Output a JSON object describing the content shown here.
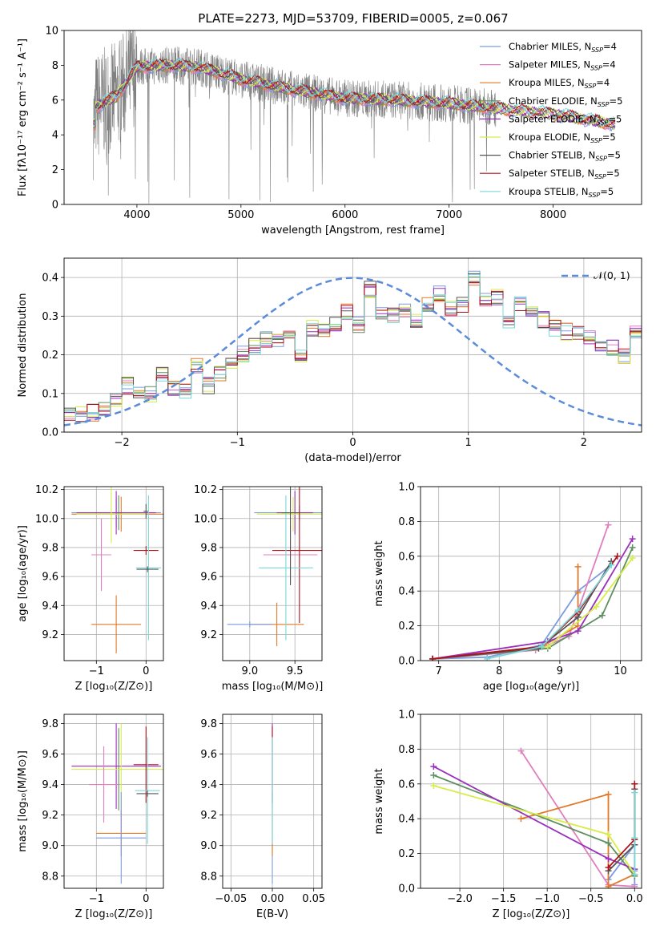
{
  "figure_title": "PLATE=2273, MJD=53709, FIBERID=0005, z=0.067",
  "colors": {
    "chabrier_miles": "#7a9be0",
    "salpeter_miles": "#e07fbf",
    "kroupa_miles": "#e07a2a",
    "chabrier_elodie": "#5f8f5f",
    "salpeter_elodie": "#9a2fbf",
    "kroupa_elodie": "#d8ec4a",
    "chabrier_stelib": "#555555",
    "salpeter_stelib": "#b0101a",
    "kroupa_stelib": "#7ad8d8",
    "data_spectrum": "#808080",
    "normal_curve": "#5b8bd9",
    "grid": "#b0b0b0"
  },
  "legend_entries": [
    {
      "base": "Chabrier MILES, N",
      "sub": "SSP",
      "suffix": "=4",
      "color_key": "chabrier_miles"
    },
    {
      "base": "Salpeter MILES, N",
      "sub": "SSP",
      "suffix": "=4",
      "color_key": "salpeter_miles"
    },
    {
      "base": "Kroupa MILES, N",
      "sub": "SSP",
      "suffix": "=4",
      "color_key": "kroupa_miles"
    },
    {
      "base": "Chabrier ELODIE, N",
      "sub": "SSP",
      "suffix": "=5",
      "color_key": "chabrier_elodie"
    },
    {
      "base": "Salpeter ELODIE, N",
      "sub": "SSP",
      "suffix": "=5",
      "color_key": "salpeter_elodie"
    },
    {
      "base": "Kroupa ELODIE, N",
      "sub": "SSP",
      "suffix": "=5",
      "color_key": "kroupa_elodie"
    },
    {
      "base": "Chabrier STELIB, N",
      "sub": "SSP",
      "suffix": "=5",
      "color_key": "chabrier_stelib"
    },
    {
      "base": "Salpeter STELIB, N",
      "sub": "SSP",
      "suffix": "=5",
      "color_key": "salpeter_stelib"
    },
    {
      "base": "Kroupa STELIB, N",
      "sub": "SSP",
      "suffix": "=5",
      "color_key": "kroupa_stelib"
    }
  ],
  "chart_data": [
    {
      "id": "spectrum",
      "type": "line",
      "xlabel": "wavelength [Angstrom, rest frame]",
      "ylabel": "Flux [fλ10⁻¹⁷ erg cm⁻² s⁻¹ A⁻¹]",
      "xlim": [
        3300,
        8850
      ],
      "ylim": [
        0,
        10
      ],
      "xticks": [
        4000,
        5000,
        6000,
        7000,
        8000
      ],
      "yticks": [
        0,
        2,
        4,
        6,
        8,
        10
      ],
      "grid": false,
      "legend_position": "top-right",
      "data_range": [
        3580,
        7450
      ],
      "model_range": [
        3580,
        8600
      ],
      "continuum_points": [
        [
          3600,
          5.6
        ],
        [
          3800,
          6.2
        ],
        [
          4000,
          7.9
        ],
        [
          4300,
          8.0
        ],
        [
          4600,
          7.9
        ],
        [
          5000,
          7.2
        ],
        [
          5500,
          6.6
        ],
        [
          6000,
          6.1
        ],
        [
          6500,
          6.0
        ],
        [
          7000,
          5.8
        ],
        [
          7500,
          5.5
        ],
        [
          8000,
          5.2
        ],
        [
          8600,
          4.6
        ]
      ]
    },
    {
      "id": "residual_hist",
      "type": "step",
      "xlabel": "(data-model)/error",
      "ylabel": "Normed distribution",
      "xlim": [
        -2.5,
        2.5
      ],
      "ylim": [
        0,
        0.45
      ],
      "xticks": [
        -2,
        -1,
        0,
        1,
        2
      ],
      "yticks": [
        0.0,
        0.1,
        0.2,
        0.3,
        0.4
      ],
      "grid": true,
      "legend_label": "𝒩(0, 1)",
      "legend_position": "top-right",
      "bin_width": 0.1,
      "bin_start": -2.5,
      "base_heights": [
        0.04,
        0.045,
        0.05,
        0.06,
        0.08,
        0.12,
        0.1,
        0.1,
        0.15,
        0.11,
        0.11,
        0.17,
        0.12,
        0.15,
        0.18,
        0.2,
        0.22,
        0.24,
        0.24,
        0.25,
        0.2,
        0.27,
        0.26,
        0.28,
        0.31,
        0.28,
        0.37,
        0.31,
        0.3,
        0.32,
        0.29,
        0.33,
        0.36,
        0.32,
        0.33,
        0.4,
        0.34,
        0.35,
        0.29,
        0.33,
        0.32,
        0.29,
        0.27,
        0.26,
        0.26,
        0.25,
        0.23,
        0.22,
        0.2,
        0.26,
        0.22,
        0.2,
        0.21,
        0.23,
        0.19,
        0.17,
        0.16,
        0.15,
        0.13,
        0.14,
        0.13,
        0.12,
        0.11,
        0.09,
        0.09,
        0.08,
        0.07,
        0.06,
        0.07,
        0.09,
        0.07,
        0.06,
        0.09,
        0.06,
        0.05,
        0.05
      ]
    },
    {
      "id": "age_vs_Z",
      "type": "scatter",
      "xlabel": "Z [log₁₀(Z/Z⊙)]",
      "ylabel": "age  [log₁₀(age/yr)]",
      "xlim": [
        -1.65,
        0.35
      ],
      "ylim": [
        9.02,
        10.22
      ],
      "xticks": [
        -1,
        0
      ],
      "yticks": [
        9.2,
        9.4,
        9.6,
        9.8,
        10.0,
        10.2
      ],
      "grid": true
    },
    {
      "id": "age_vs_mass",
      "type": "scatter",
      "xlabel": "mass [log₁₀(M/M⊙)]",
      "ylabel": "",
      "xlim": [
        8.7,
        9.8
      ],
      "ylim": [
        9.02,
        10.22
      ],
      "xticks": [
        9.0,
        9.5
      ],
      "yticks": [
        9.2,
        9.4,
        9.6,
        9.8,
        10.0,
        10.2
      ],
      "grid": true
    },
    {
      "id": "mass_weight_vs_age",
      "type": "line",
      "xlabel": "age  [log₁₀(age/yr)]",
      "ylabel": "mass weight",
      "xlim": [
        6.7,
        10.35
      ],
      "ylim": [
        0,
        1
      ],
      "xticks": [
        7,
        8,
        9,
        10
      ],
      "yticks": [
        0.0,
        0.2,
        0.4,
        0.6,
        0.8,
        1.0
      ],
      "grid": true,
      "series": [
        {
          "color_key": "chabrier_miles",
          "x": [
            6.9,
            7.8,
            8.7,
            9.3,
            9.85
          ],
          "y": [
            0.01,
            0.02,
            0.09,
            0.4,
            0.55
          ]
        },
        {
          "color_key": "salpeter_miles",
          "x": [
            6.9,
            8.6,
            9.15,
            9.8
          ],
          "y": [
            0.01,
            0.06,
            0.14,
            0.78
          ]
        },
        {
          "color_key": "kroupa_miles",
          "x": [
            6.9,
            8.7,
            9.3,
            9.3,
            9.3
          ],
          "y": [
            0.01,
            0.08,
            0.2,
            0.54,
            0.39
          ]
        },
        {
          "color_key": "chabrier_elodie",
          "x": [
            6.9,
            8.8,
            9.7,
            10.2
          ],
          "y": [
            0.01,
            0.07,
            0.26,
            0.65
          ]
        },
        {
          "color_key": "salpeter_elodie",
          "x": [
            6.9,
            8.8,
            9.3,
            10.2
          ],
          "y": [
            0.01,
            0.11,
            0.17,
            0.7
          ]
        },
        {
          "color_key": "kroupa_elodie",
          "x": [
            6.9,
            8.8,
            9.6,
            10.2
          ],
          "y": [
            0.01,
            0.08,
            0.31,
            0.59
          ]
        },
        {
          "color_key": "chabrier_stelib",
          "x": [
            6.9,
            8.65,
            9.3,
            9.85
          ],
          "y": [
            0.01,
            0.07,
            0.25,
            0.57
          ]
        },
        {
          "color_key": "salpeter_stelib",
          "x": [
            6.9,
            8.7,
            9.3,
            9.95
          ],
          "y": [
            0.01,
            0.08,
            0.28,
            0.6
          ]
        },
        {
          "color_key": "kroupa_stelib",
          "x": [
            7.8,
            8.7,
            9.3,
            9.85
          ],
          "y": [
            0.01,
            0.08,
            0.29,
            0.55
          ]
        }
      ]
    },
    {
      "id": "mass_vs_Z",
      "type": "scatter",
      "xlabel": "Z [log₁₀(Z/Z⊙)]",
      "ylabel": "mass [log₁₀(M/M⊙)]",
      "xlim": [
        -1.65,
        0.35
      ],
      "ylim": [
        8.72,
        9.86
      ],
      "xticks": [
        -1,
        0
      ],
      "yticks": [
        8.8,
        9.0,
        9.2,
        9.4,
        9.6,
        9.8
      ],
      "grid": true
    },
    {
      "id": "mass_vs_ebv",
      "type": "scatter",
      "xlabel": "E(B-V)",
      "ylabel": "",
      "xlim": [
        -0.06,
        0.06
      ],
      "ylim": [
        8.72,
        9.86
      ],
      "xticks": [
        -0.05,
        0.0,
        0.05
      ],
      "xticklabels": [
        "−0.05",
        "0.00",
        "0.05"
      ],
      "yticks": [
        8.8,
        9.0,
        9.2,
        9.4,
        9.6,
        9.8
      ],
      "grid": true
    },
    {
      "id": "mass_weight_vs_Z",
      "type": "line",
      "xlabel": "Z [log₁₀(Z/Z⊙)]",
      "ylabel": "mass weight",
      "xlim": [
        -2.45,
        0.08
      ],
      "ylim": [
        0,
        1
      ],
      "xticks": [
        -2.0,
        -1.5,
        -1.0,
        -0.5,
        0.0
      ],
      "yticks": [
        0.0,
        0.2,
        0.4,
        0.6,
        0.8,
        1.0
      ],
      "grid": true,
      "series": [
        {
          "color_key": "chabrier_miles",
          "x": [
            -0.3,
            0.0,
            0.0,
            0.0
          ],
          "y": [
            0.05,
            0.25,
            0.1,
            0.02
          ]
        },
        {
          "color_key": "salpeter_miles",
          "x": [
            -1.3,
            -0.3,
            0.0
          ],
          "y": [
            0.79,
            0.02,
            0.01
          ]
        },
        {
          "color_key": "kroupa_miles",
          "x": [
            -1.3,
            -0.3,
            -0.3,
            0.0
          ],
          "y": [
            0.4,
            0.54,
            0.01,
            0.08
          ]
        },
        {
          "color_key": "chabrier_elodie",
          "x": [
            -2.3,
            -0.3,
            0.0
          ],
          "y": [
            0.65,
            0.26,
            0.07
          ]
        },
        {
          "color_key": "salpeter_elodie",
          "x": [
            -2.3,
            -0.3,
            0.0
          ],
          "y": [
            0.7,
            0.17,
            0.11
          ]
        },
        {
          "color_key": "kroupa_elodie",
          "x": [
            -2.3,
            -0.3,
            0.0
          ],
          "y": [
            0.59,
            0.31,
            0.08
          ]
        },
        {
          "color_key": "chabrier_stelib",
          "x": [
            -0.3,
            0.0,
            0.0
          ],
          "y": [
            0.1,
            0.25,
            0.57
          ]
        },
        {
          "color_key": "salpeter_stelib",
          "x": [
            -0.3,
            0.0,
            0.0
          ],
          "y": [
            0.12,
            0.28,
            0.6
          ]
        },
        {
          "color_key": "kroupa_stelib",
          "x": [
            0.0,
            0.0,
            0.0
          ],
          "y": [
            0.29,
            0.55,
            0.08
          ]
        }
      ]
    }
  ],
  "error_bars": {
    "age_vs_Z": [
      {
        "color_key": "chabrier_miles",
        "x": -0.6,
        "xerr": 0.9,
        "y": 10.04,
        "yerr": 0.1
      },
      {
        "color_key": "kroupa_miles",
        "x": -0.5,
        "xerr": 1.0,
        "y": 10.03,
        "yerr": 0.12
      },
      {
        "color_key": "salpeter_miles",
        "x": -0.9,
        "xerr": 0.2,
        "y": 9.75,
        "yerr": 0.25
      },
      {
        "color_key": "kroupa_miles",
        "x": -0.6,
        "xerr": 0.5,
        "y": 9.27,
        "yerr": 0.2
      },
      {
        "color_key": "chabrier_elodie",
        "x": -0.55,
        "xerr": 0.05,
        "y": 10.04,
        "yerr": 0.12
      },
      {
        "color_key": "salpeter_elodie",
        "x": -0.6,
        "xerr": 0.8,
        "y": 10.04,
        "yerr": 0.15
      },
      {
        "color_key": "kroupa_elodie",
        "x": -0.7,
        "xerr": 0.7,
        "y": 10.03,
        "yerr": 0.2
      },
      {
        "color_key": "chabrier_stelib",
        "x": 0.0,
        "xerr": 0.05,
        "y": 10.05,
        "yerr": 0.05
      },
      {
        "color_key": "salpeter_stelib",
        "x": 0.0,
        "xerr": 0.25,
        "y": 9.78,
        "yerr": 0.03
      },
      {
        "color_key": "kroupa_stelib",
        "x": 0.05,
        "xerr": 0.25,
        "y": 9.66,
        "yerr": 0.5
      },
      {
        "color_key": "chabrier_stelib",
        "x": 0.03,
        "xerr": 0.22,
        "y": 9.65,
        "yerr": 0.02
      }
    ],
    "age_vs_mass": [
      {
        "color_key": "chabrier_miles",
        "x": 9.55,
        "xerr": 0.5,
        "y": 10.04,
        "yerr": 0.05
      },
      {
        "color_key": "salpeter_elodie",
        "x": 9.5,
        "xerr": 0.2,
        "y": 10.04,
        "yerr": 0.15
      },
      {
        "color_key": "kroupa_elodie",
        "x": 9.48,
        "xerr": 0.4,
        "y": 10.03,
        "yerr": 0.12
      },
      {
        "color_key": "salpeter_miles",
        "x": 9.45,
        "xerr": 0.3,
        "y": 9.75,
        "yerr": 0.2
      },
      {
        "color_key": "kroupa_miles",
        "x": 9.3,
        "xerr": 0.3,
        "y": 9.27,
        "yerr": 0.15
      },
      {
        "color_key": "chabrier_miles",
        "x": 9.0,
        "xerr": 0.25,
        "y": 9.27,
        "yerr": 0.02
      },
      {
        "color_key": "salpeter_stelib",
        "x": 9.55,
        "xerr": 0.3,
        "y": 9.78,
        "yerr": 0.5
      },
      {
        "color_key": "kroupa_stelib",
        "x": 9.4,
        "xerr": 0.3,
        "y": 9.66,
        "yerr": 0.5
      },
      {
        "color_key": "chabrier_stelib",
        "x": 9.45,
        "xerr": 0.1,
        "y": 10.04,
        "yerr": 0.5
      }
    ],
    "mass_vs_Z": [
      {
        "color_key": "salpeter_elodie",
        "x": -0.6,
        "xerr": 0.9,
        "y": 9.52,
        "yerr": 0.28
      },
      {
        "color_key": "chabrier_elodie",
        "x": -0.55,
        "xerr": 0.05,
        "y": 9.5,
        "yerr": 0.27
      },
      {
        "color_key": "kroupa_elodie",
        "x": -0.5,
        "xerr": 1.0,
        "y": 9.5,
        "yerr": 0.3
      },
      {
        "color_key": "salpeter_miles",
        "x": -0.85,
        "xerr": 0.3,
        "y": 9.4,
        "yerr": 0.25
      },
      {
        "color_key": "kroupa_miles",
        "x": -0.5,
        "xerr": 0.5,
        "y": 9.08,
        "yerr": 0.15
      },
      {
        "color_key": "chabrier_miles",
        "x": -0.5,
        "xerr": 0.5,
        "y": 9.05,
        "yerr": 0.3
      },
      {
        "color_key": "salpeter_stelib",
        "x": 0.0,
        "xerr": 0.25,
        "y": 9.53,
        "yerr": 0.25
      },
      {
        "color_key": "kroupa_stelib",
        "x": 0.03,
        "xerr": 0.25,
        "y": 9.36,
        "yerr": 0.35
      },
      {
        "color_key": "chabrier_stelib",
        "x": 0.03,
        "xerr": 0.22,
        "y": 9.34,
        "yerr": 0.02
      }
    ],
    "mass_vs_ebv": [
      {
        "color_key": "chabrier_miles",
        "x": 0.0,
        "xerr": 0.0,
        "y": 9.05,
        "yerr": 0.3
      },
      {
        "color_key": "kroupa_miles",
        "x": 0.0,
        "xerr": 0.0,
        "y": 9.08,
        "yerr": 0.15
      },
      {
        "color_key": "salpeter_elodie",
        "x": 0.0,
        "xerr": 0.0,
        "y": 9.52,
        "yerr": 0.28
      },
      {
        "color_key": "salpeter_stelib",
        "x": 0.0,
        "xerr": 0.0,
        "y": 9.53,
        "yerr": 0.25
      },
      {
        "color_key": "kroupa_stelib",
        "x": 0.0,
        "xerr": 0.0,
        "y": 9.36,
        "yerr": 0.35
      }
    ]
  }
}
